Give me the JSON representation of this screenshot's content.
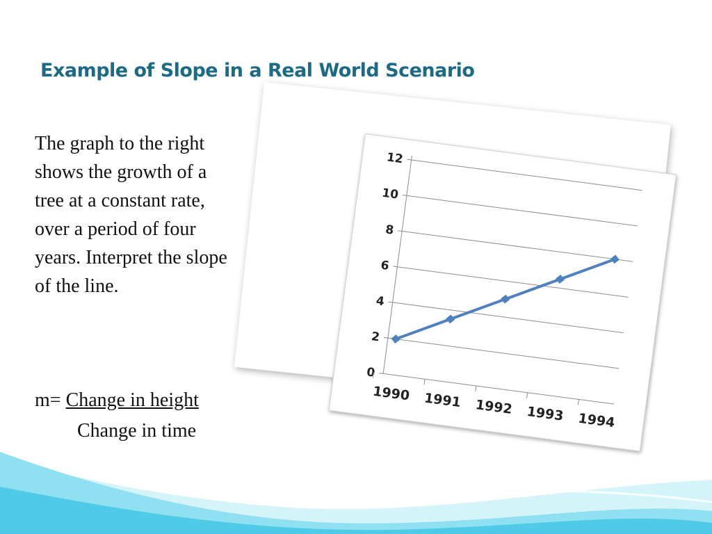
{
  "slide": {
    "title": "Example of Slope in a Real World Scenario",
    "body_lines": [
      "The graph to the right",
      "shows the growth of a",
      "tree at a constant rate,",
      "over a period of four",
      "years. Interpret the slope",
      "of the line."
    ],
    "formula": {
      "prefix": "m=",
      "numerator": "Change in height",
      "denominator": "Change in time"
    }
  },
  "colors": {
    "title": "#1b6a86",
    "line": "#4f81bd",
    "wave_light": "#bfeff7",
    "wave_mid": "#7fdcef",
    "wave_deep": "#3cc6e6"
  },
  "chart_data": {
    "type": "line",
    "x": [
      "1990",
      "1991",
      "1992",
      "1993",
      "1994"
    ],
    "series": [
      {
        "values": [
          2,
          3.5,
          5,
          6.5,
          8
        ]
      }
    ],
    "y_ticks": [
      "0",
      "2",
      "4",
      "6",
      "8",
      "10",
      "12"
    ],
    "ylim": [
      0,
      12
    ],
    "grid": true,
    "title": "",
    "xlabel": "",
    "ylabel": ""
  }
}
